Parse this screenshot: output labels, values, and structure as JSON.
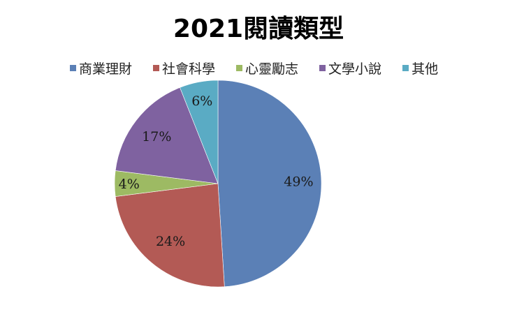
{
  "title": "2021閱讀類型",
  "legend": [
    {
      "label": "商業理財",
      "color": "#5b80b6"
    },
    {
      "label": "社會科學",
      "color": "#b35a55"
    },
    {
      "label": "心靈勵志",
      "color": "#9dba63"
    },
    {
      "label": "文學小說",
      "color": "#7f62a0"
    },
    {
      "label": "其他",
      "color": "#5aabc4"
    }
  ],
  "chart_data": {
    "type": "pie",
    "title": "2021閱讀類型",
    "categories": [
      "商業理財",
      "社會科學",
      "心靈勵志",
      "文學小說",
      "其他"
    ],
    "values": [
      49,
      24,
      4,
      17,
      6
    ],
    "labels": [
      "49%",
      "24%",
      "4%",
      "17%",
      "6%"
    ],
    "colors": [
      "#5b80b6",
      "#b35a55",
      "#9dba63",
      "#7f62a0",
      "#5aabc4"
    ],
    "start_angle": "12 o'clock",
    "direction": "clockwise",
    "legend_position": "top"
  }
}
